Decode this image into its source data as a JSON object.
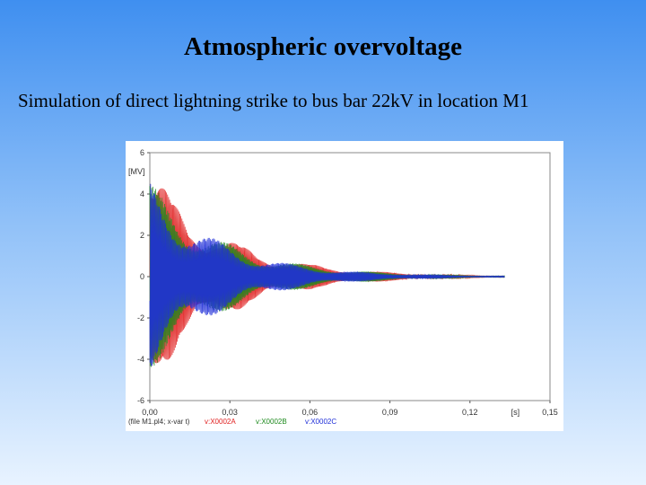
{
  "slide": {
    "title": "Atmospheric overvoltage",
    "subtitle": "Simulation of direct lightning strike to bus bar 22kV in location M1"
  },
  "chart_data": {
    "type": "line",
    "title": "",
    "xlabel": "[s]",
    "ylabel": "[MV]",
    "xlim": [
      0,
      0.15
    ],
    "ylim": [
      -6,
      6
    ],
    "x_ticks": [
      "0,00",
      "0,03",
      "0,06",
      "0,09",
      "0,12",
      "0,15"
    ],
    "y_ticks": [
      "6",
      "4",
      "2",
      "0",
      "-2",
      "-4",
      "-6"
    ],
    "caption": "(file M1.pl4; x-var t)",
    "signal_end": 0.133,
    "series": [
      {
        "name": "v:X0002A",
        "color": "#e02020",
        "peak": 5.2,
        "decay": 0.028,
        "freq": 2600
      },
      {
        "name": "v:X0002B",
        "color": "#1e8a1e",
        "peak": 4.6,
        "decay": 0.028,
        "freq": 2700
      },
      {
        "name": "v:X0002C",
        "color": "#1f2fd8",
        "peak": 4.7,
        "decay": 0.026,
        "freq": 2500
      }
    ]
  }
}
